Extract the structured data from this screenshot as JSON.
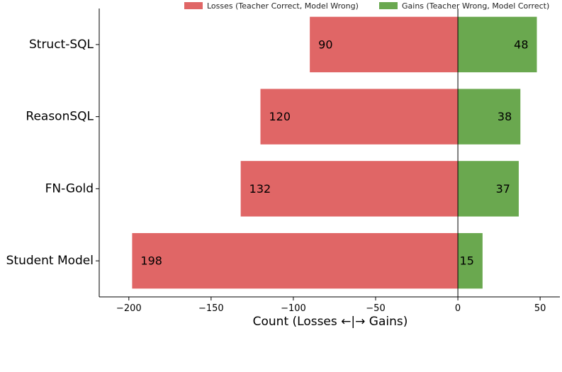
{
  "chart_data": {
    "type": "bar",
    "orientation": "horizontal",
    "stacked_diverging": true,
    "categories": [
      "Struct-SQL",
      "ReasonSQL",
      "FN-Gold",
      "Student Model"
    ],
    "series": [
      {
        "name": "Losses (Teacher Correct, Model Wrong)",
        "values": [
          -90,
          -120,
          -132,
          -198
        ],
        "labels": [
          "90",
          "120",
          "132",
          "198"
        ],
        "color": "#e06666"
      },
      {
        "name": "Gains (Teacher Wrong, Model Correct)",
        "values": [
          48,
          38,
          37,
          15
        ],
        "labels": [
          "48",
          "38",
          "37",
          "15"
        ],
        "color": "#6aa84f"
      }
    ],
    "xlabel": "Count (Losses ←|→ Gains)",
    "ylabel": "",
    "xlim": [
      -218,
      62
    ],
    "xticks": [
      -200,
      -150,
      -100,
      -50,
      0,
      50
    ],
    "xtick_labels": [
      "−200",
      "−150",
      "−100",
      "−50",
      "0",
      "50"
    ],
    "grid": false,
    "legend_position": "top-right"
  }
}
